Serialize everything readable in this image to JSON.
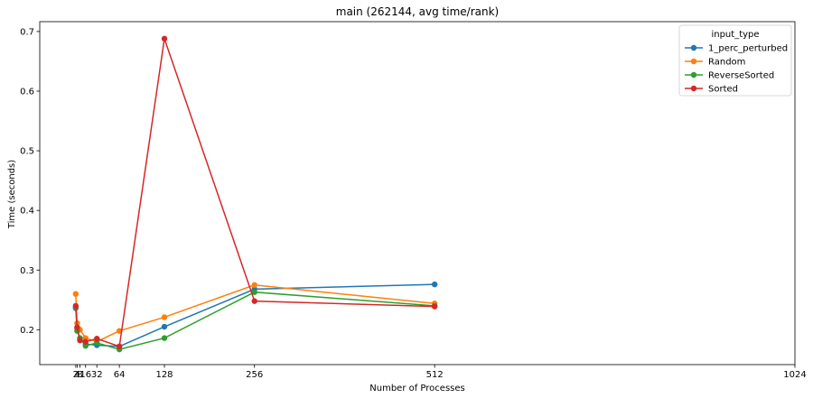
{
  "chart_data": {
    "type": "line",
    "title": "main (262144, avg time/rank)",
    "xlabel": "Number of Processes",
    "ylabel": "Time (seconds)",
    "xlim": [
      -49.15,
      1024
    ],
    "ylim": [
      0.1415,
      0.7165
    ],
    "xticks": [
      2,
      4,
      8,
      16,
      32,
      64,
      128,
      256,
      512,
      1024
    ],
    "yticks": [
      0.2,
      0.3,
      0.4,
      0.5,
      0.6,
      0.7
    ],
    "grid": false,
    "legend": {
      "title": "input_type",
      "position": "top-right"
    },
    "series": [
      {
        "name": "1_perc_perturbed",
        "color": "#1f77b4",
        "x": [
          2,
          4,
          8,
          16,
          32,
          64,
          128,
          256,
          512
        ],
        "y": [
          0.236,
          0.203,
          0.184,
          0.176,
          0.174,
          0.172,
          0.205,
          0.268,
          0.276
        ]
      },
      {
        "name": "Random",
        "color": "#ff7f0e",
        "x": [
          2,
          4,
          8,
          16,
          32,
          64,
          128,
          256,
          512
        ],
        "y": [
          0.26,
          0.211,
          0.2,
          0.186,
          0.18,
          0.198,
          0.221,
          0.275,
          0.244
        ]
      },
      {
        "name": "ReverseSorted",
        "color": "#2ca02c",
        "x": [
          2,
          4,
          8,
          16,
          32,
          64,
          128,
          256,
          512
        ],
        "y": [
          0.238,
          0.198,
          0.186,
          0.173,
          0.178,
          0.167,
          0.186,
          0.263,
          0.24
        ]
      },
      {
        "name": "Sorted",
        "color": "#d62728",
        "x": [
          2,
          4,
          8,
          16,
          32,
          64,
          128,
          256,
          512
        ],
        "y": [
          0.24,
          0.204,
          0.182,
          0.18,
          0.185,
          0.172,
          0.688,
          0.248,
          0.239
        ]
      }
    ]
  }
}
